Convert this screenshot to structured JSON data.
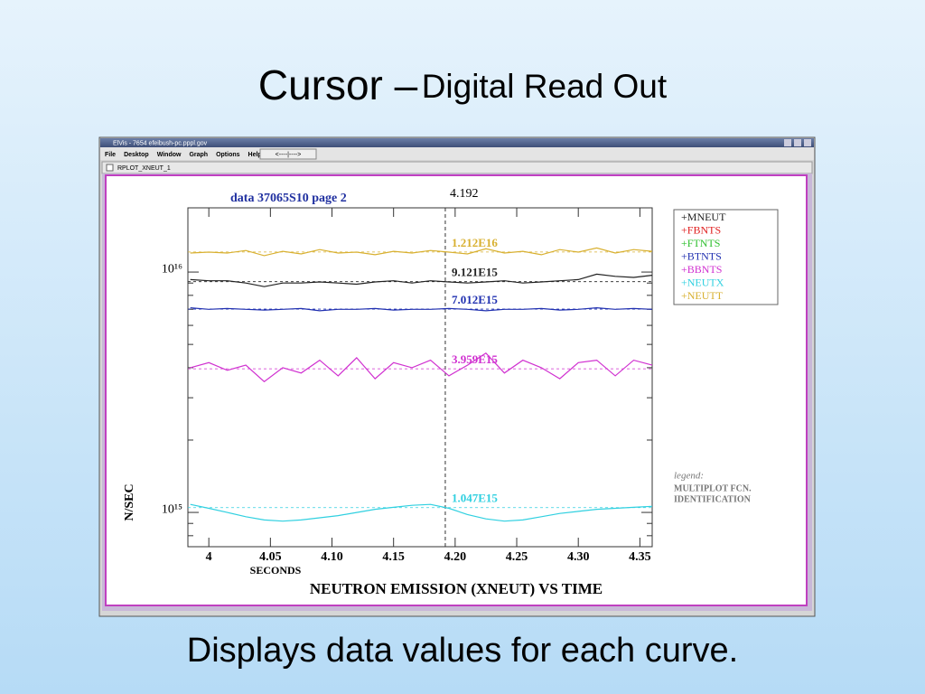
{
  "slide": {
    "title_main": "Cursor –",
    "title_sub": "Digital Read Out",
    "caption": "Displays data values for each curve."
  },
  "window": {
    "title": "ElVis - 7654 efeibush-pc.pppl.gov",
    "menu": [
      "File",
      "Desktop",
      "Window",
      "Graph",
      "Options",
      "Help"
    ],
    "toolbar_button": "<----|---->",
    "subwindow_title": "RPLOT_XNEUT_1"
  },
  "chart_data": {
    "type": "line",
    "title": "data 37065S10 page 2",
    "xlabel": "NEUTRON EMISSION (XNEUT) VS TIME",
    "x_unit": "SECONDS",
    "ylabel": "N/SEC",
    "log_y": true,
    "xlim": [
      3.983,
      4.36
    ],
    "ylim": [
      720000000000000.0,
      1.85e+16
    ],
    "xticks": [
      4,
      4.05,
      {
        "value": 4.1,
        "label": "4.10"
      },
      4.15,
      {
        "value": 4.2,
        "label": "4.20"
      },
      4.25,
      {
        "value": 4.3,
        "label": "4.30"
      },
      4.35
    ],
    "yticks": [
      {
        "value": 1000000000000000.0,
        "label": "10¹⁵"
      },
      {
        "value": 1e+16,
        "label": "10¹⁶"
      }
    ],
    "yminor": [
      800000000000000.0,
      900000000000000.0,
      2000000000000000.0,
      3000000000000000.0,
      4000000000000000.0,
      5000000000000000.0,
      6000000000000000.0,
      7000000000000000.0,
      8000000000000000.0,
      9000000000000000.0
    ],
    "cursor": {
      "value": 4.192,
      "label": "4.192"
    },
    "x": [
      3.985,
      4.0,
      4.015,
      4.03,
      4.045,
      4.06,
      4.075,
      4.09,
      4.105,
      4.12,
      4.135,
      4.15,
      4.165,
      4.18,
      4.195,
      4.21,
      4.225,
      4.24,
      4.255,
      4.27,
      4.285,
      4.3,
      4.315,
      4.33,
      4.345,
      4.36
    ],
    "series": [
      {
        "name": "+MNEUT",
        "color": "#222222",
        "cursor_value": 9121000000000000.0,
        "cursor_label": "9.121E15",
        "values": [
          9300000000000000.0,
          9200000000000000.0,
          9200000000000000.0,
          9000000000000000.0,
          8700000000000000.0,
          9000000000000000.0,
          9000000000000000.0,
          9100000000000000.0,
          9000000000000000.0,
          8900000000000000.0,
          9100000000000000.0,
          9200000000000000.0,
          9000000000000000.0,
          9200000000000000.0,
          9100000000000000.0,
          9000000000000000.0,
          9100000000000000.0,
          9200000000000000.0,
          9000000000000000.0,
          9100000000000000.0,
          9200000000000000.0,
          9300000000000000.0,
          9800000000000000.0,
          9600000000000000.0,
          9500000000000000.0,
          9700000000000000.0
        ]
      },
      {
        "name": "+FBNTS",
        "color": "#e02020",
        "values": [
          null,
          null,
          null,
          null,
          null,
          null,
          null,
          null,
          null,
          null,
          null,
          null,
          null,
          null,
          null,
          null,
          null,
          null,
          null,
          null,
          null,
          null,
          null,
          null,
          null,
          null
        ]
      },
      {
        "name": "+FTNTS",
        "color": "#30c030",
        "values": [
          null,
          null,
          null,
          null,
          null,
          null,
          null,
          null,
          null,
          null,
          null,
          null,
          null,
          null,
          null,
          null,
          null,
          null,
          null,
          null,
          null,
          null,
          null,
          null,
          null,
          null
        ]
      },
      {
        "name": "+BTNTS",
        "color": "#2030b0",
        "cursor_value": 7012000000000000.0,
        "cursor_label": "7.012E15",
        "values": [
          7100000000000000.0,
          7000000000000000.0,
          7050000000000000.0,
          7000000000000000.0,
          6950000000000000.0,
          7000000000000000.0,
          7050000000000000.0,
          6900000000000000.0,
          7000000000000000.0,
          7000000000000000.0,
          7050000000000000.0,
          6950000000000000.0,
          7000000000000000.0,
          7000000000000000.0,
          7050000000000000.0,
          7000000000000000.0,
          6900000000000000.0,
          7000000000000000.0,
          7000000000000000.0,
          7050000000000000.0,
          6950000000000000.0,
          7000000000000000.0,
          7100000000000000.0,
          7000000000000000.0,
          7050000000000000.0,
          7000000000000000.0
        ]
      },
      {
        "name": "+BBNTS",
        "color": "#d030d0",
        "cursor_value": 3959000000000000.0,
        "cursor_label": "3.959E15",
        "values": [
          4000000000000000.0,
          4200000000000000.0,
          3900000000000000.0,
          4100000000000000.0,
          3500000000000000.0,
          4000000000000000.0,
          3800000000000000.0,
          4300000000000000.0,
          3700000000000000.0,
          4400000000000000.0,
          3600000000000000.0,
          4200000000000000.0,
          4000000000000000.0,
          4300000000000000.0,
          3700000000000000.0,
          4100000000000000.0,
          4600000000000000.0,
          3800000000000000.0,
          4300000000000000.0,
          4000000000000000.0,
          3600000000000000.0,
          4200000000000000.0,
          4300000000000000.0,
          3700000000000000.0,
          4300000000000000.0,
          4100000000000000.0
        ]
      },
      {
        "name": "+NEUTX",
        "color": "#30d0e0",
        "cursor_value": 1047000000000000.0,
        "cursor_label": "1.047E15",
        "values": [
          1080000000000000.0,
          1040000000000000.0,
          1000000000000000.0,
          960000000000000.0,
          930000000000000.0,
          920000000000000.0,
          930000000000000.0,
          950000000000000.0,
          970000000000000.0,
          1000000000000000.0,
          1030000000000000.0,
          1050000000000000.0,
          1070000000000000.0,
          1080000000000000.0,
          1040000000000000.0,
          980000000000000.0,
          940000000000000.0,
          920000000000000.0,
          930000000000000.0,
          960000000000000.0,
          990000000000000.0,
          1010000000000000.0,
          1030000000000000.0,
          1040000000000000.0,
          1050000000000000.0,
          1060000000000000.0
        ]
      },
      {
        "name": "+NEUTT",
        "color": "#d8b030",
        "cursor_value": 1.212e+16,
        "cursor_label": "1.212E16",
        "values": [
          1.2e+16,
          1.21e+16,
          1.2e+16,
          1.23e+16,
          1.17e+16,
          1.22e+16,
          1.19e+16,
          1.24e+16,
          1.2e+16,
          1.21e+16,
          1.18e+16,
          1.22e+16,
          1.2e+16,
          1.23e+16,
          1.21e+16,
          1.19e+16,
          1.25e+16,
          1.2e+16,
          1.22e+16,
          1.18e+16,
          1.24e+16,
          1.21e+16,
          1.26e+16,
          1.2e+16,
          1.24e+16,
          1.22e+16
        ]
      }
    ],
    "annotation": {
      "heading": "legend:",
      "lines": [
        "MULTIPLOT FCN.",
        "IDENTIFICATION"
      ]
    }
  }
}
